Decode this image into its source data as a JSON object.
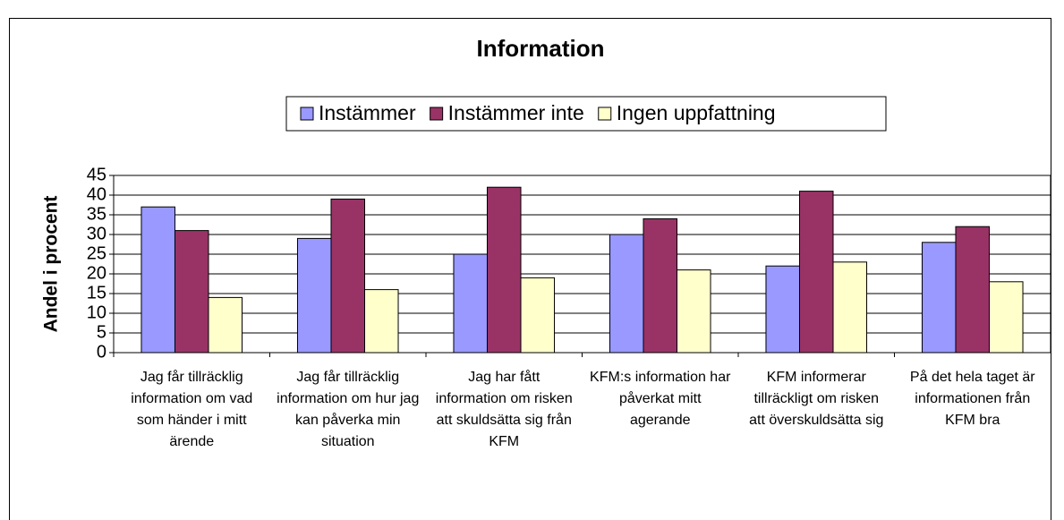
{
  "chart_data": {
    "type": "bar",
    "title": "Information",
    "y_label": "Andel i procent",
    "categories": [
      "Jag får tillräcklig information om vad som händer i mitt ärende",
      "Jag får tillräcklig information om hur jag kan påverka min situation",
      "Jag har fått information om risken att skuldsätta sig från KFM",
      "KFM:s information har påverkat mitt agerande",
      "KFM informerar tillräckligt om risken att överskuldsätta sig",
      "På det hela taget är informationen från KFM bra"
    ],
    "series": [
      {
        "name": "Instämmer",
        "color": "#9999ff",
        "values": [
          37,
          29,
          25,
          30,
          22,
          28
        ]
      },
      {
        "name": "Instämmer inte",
        "color": "#993366",
        "values": [
          31,
          39,
          42,
          34,
          41,
          32
        ]
      },
      {
        "name": "Ingen uppfattning",
        "color": "#ffffcc",
        "values": [
          14,
          16,
          19,
          21,
          23,
          18
        ]
      }
    ],
    "ylim": [
      0,
      45
    ],
    "yticks": [
      0,
      5,
      10,
      15,
      20,
      25,
      30,
      35,
      40,
      45
    ],
    "grid": true,
    "legend": "top"
  }
}
